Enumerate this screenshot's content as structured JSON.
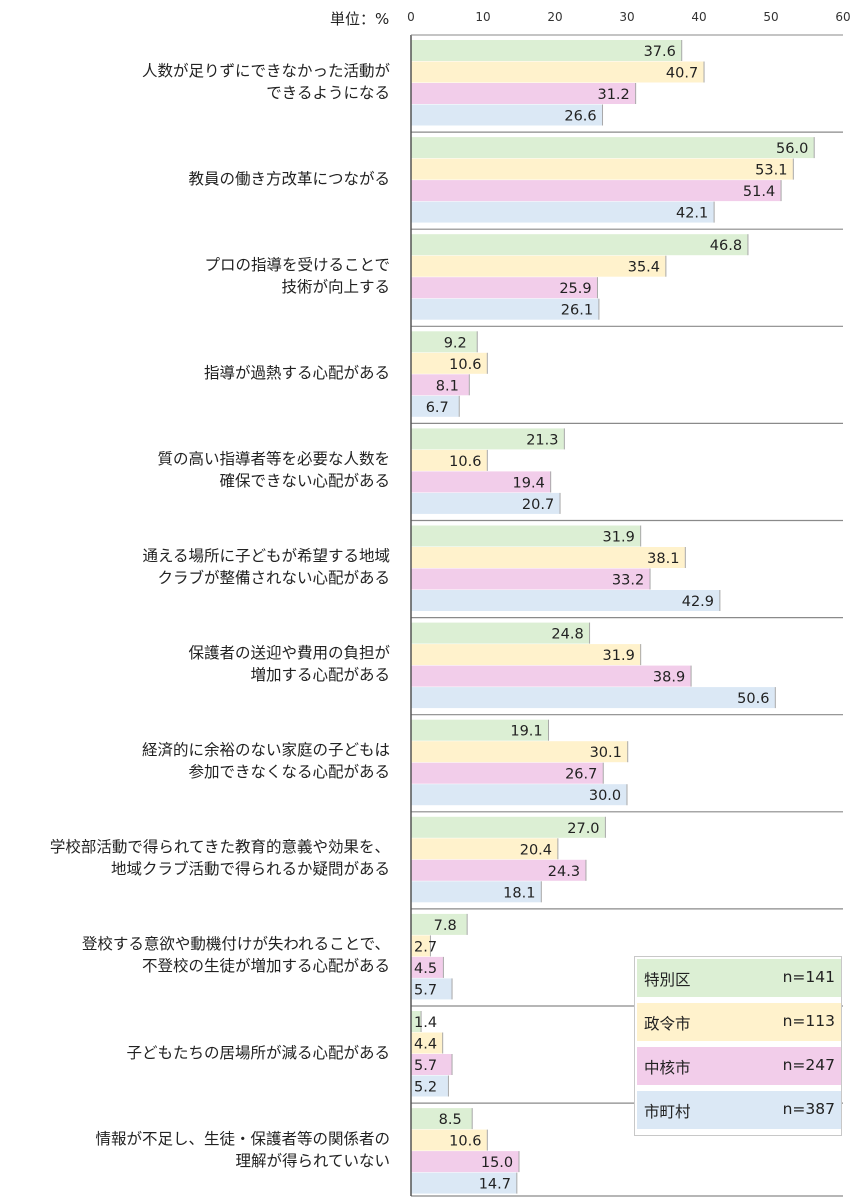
{
  "chart_data": {
    "type": "bar",
    "orientation": "horizontal",
    "unit_label": "単位：%",
    "xlim": [
      0,
      60
    ],
    "x_ticks": [
      "0",
      "10",
      "20",
      "30",
      "40",
      "50",
      "60"
    ],
    "categories": [
      [
        "人数が足りずにできなかった活動が",
        "できるようになる"
      ],
      [
        "教員の働き方改革につながる"
      ],
      [
        "プロの指導を受けることで",
        "技術が向上する"
      ],
      [
        "指導が過熱する心配がある"
      ],
      [
        "質の高い指導者等を必要な人数を",
        "確保できない心配がある"
      ],
      [
        "通える場所に子どもが希望する地域",
        "クラブが整備されない心配がある"
      ],
      [
        "保護者の送迎や費用の負担が",
        "増加する心配がある"
      ],
      [
        "経済的に余裕のない家庭の子どもは",
        "参加できなくなる心配がある"
      ],
      [
        "学校部活動で得られてきた教育的意義や効果を、",
        "地域クラブ活動で得られるか疑問がある"
      ],
      [
        "登校する意欲や動機付けが失われることで、",
        "不登校の生徒が増加する心配がある"
      ],
      [
        "子どもたちの居場所が減る心配がある"
      ],
      [
        "情報が不足し、生徒・保護者等の関係者の",
        "理解が得られていない"
      ]
    ],
    "series": [
      {
        "name": "特別区",
        "n": "n=141",
        "color": "#dcefd4",
        "values": [
          37.6,
          56.0,
          46.8,
          9.2,
          21.3,
          31.9,
          24.8,
          19.1,
          27.0,
          7.8,
          1.4,
          8.5
        ]
      },
      {
        "name": "政令市",
        "n": "n=113",
        "color": "#fff2cc",
        "values": [
          40.7,
          53.1,
          35.4,
          10.6,
          10.6,
          38.1,
          31.9,
          30.1,
          20.4,
          2.7,
          4.4,
          10.6
        ]
      },
      {
        "name": "中核市",
        "n": "n=247",
        "color": "#f2cdea",
        "values": [
          31.2,
          51.4,
          25.9,
          8.1,
          19.4,
          33.2,
          38.9,
          26.7,
          24.3,
          4.5,
          5.7,
          15.0
        ]
      },
      {
        "name": "市町村",
        "n": "n=387",
        "color": "#dbe8f5",
        "values": [
          26.6,
          42.1,
          26.1,
          6.7,
          20.7,
          42.9,
          50.6,
          30.0,
          18.1,
          5.7,
          5.2,
          14.7
        ]
      }
    ],
    "legend_position": "bottom-right"
  }
}
